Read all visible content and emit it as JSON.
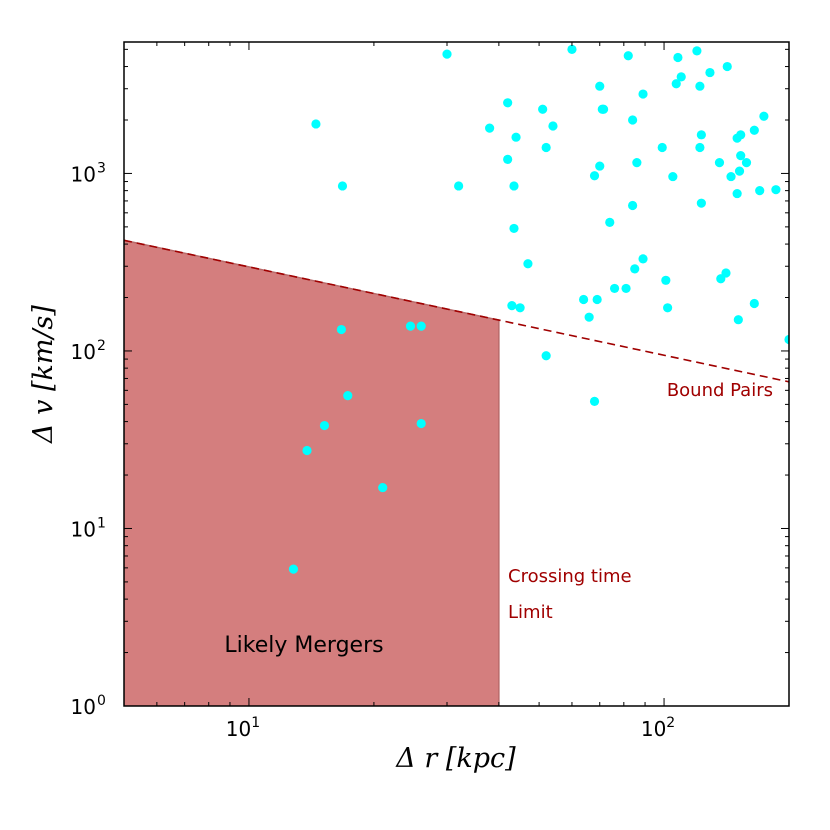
{
  "chart_data": {
    "type": "scatter",
    "x_scale": "log",
    "y_scale": "log",
    "xlim": [
      5,
      200
    ],
    "ylim": [
      1,
      5500
    ],
    "xlabel": "Δ r [kpc]",
    "ylabel": "Δ v [km/s]",
    "x_ticks": [
      {
        "value": 10,
        "base": "10",
        "exp": "1"
      },
      {
        "value": 100,
        "base": "10",
        "exp": "2"
      }
    ],
    "y_ticks": [
      {
        "value": 1,
        "base": "10",
        "exp": "0"
      },
      {
        "value": 10,
        "base": "10",
        "exp": "1"
      },
      {
        "value": 100,
        "base": "10",
        "exp": "2"
      },
      {
        "value": 1000,
        "base": "10",
        "exp": "3"
      }
    ],
    "colors": {
      "points": "#00ffff",
      "merger_region": "#d47e7e",
      "merger_edge": "#b86b6b",
      "bound_line": "#a00000",
      "annotation": "#a00000"
    },
    "bound_pairs_line": [
      {
        "x": 5,
        "y": 420
      },
      {
        "x": 200,
        "y": 67
      }
    ],
    "crossing_time_limit_x": 40,
    "merger_region": {
      "x_max": 40,
      "description_label": "Likely Mergers"
    },
    "annotations": {
      "bound_pairs": "Bound Pairs",
      "crossing_line1": "Crossing time",
      "crossing_line2": "Limit",
      "mergers": "Likely Mergers"
    },
    "points": [
      {
        "x": 14.5,
        "y": 1900
      },
      {
        "x": 16.8,
        "y": 850
      },
      {
        "x": 30,
        "y": 4700
      },
      {
        "x": 32,
        "y": 850
      },
      {
        "x": 38,
        "y": 1800
      },
      {
        "x": 42,
        "y": 2500
      },
      {
        "x": 42,
        "y": 1200
      },
      {
        "x": 43.5,
        "y": 850
      },
      {
        "x": 44,
        "y": 1600
      },
      {
        "x": 43.5,
        "y": 490
      },
      {
        "x": 47,
        "y": 310
      },
      {
        "x": 51,
        "y": 2300
      },
      {
        "x": 52,
        "y": 1400
      },
      {
        "x": 54,
        "y": 1850
      },
      {
        "x": 60,
        "y": 5000
      },
      {
        "x": 70,
        "y": 3100
      },
      {
        "x": 71,
        "y": 2300
      },
      {
        "x": 71.5,
        "y": 2300
      },
      {
        "x": 70,
        "y": 1100
      },
      {
        "x": 68,
        "y": 970
      },
      {
        "x": 82,
        "y": 4600
      },
      {
        "x": 84,
        "y": 2000
      },
      {
        "x": 84,
        "y": 660
      },
      {
        "x": 86,
        "y": 1150
      },
      {
        "x": 89,
        "y": 2800
      },
      {
        "x": 74,
        "y": 530
      },
      {
        "x": 89,
        "y": 330
      },
      {
        "x": 85,
        "y": 290
      },
      {
        "x": 81,
        "y": 225
      },
      {
        "x": 76,
        "y": 225
      },
      {
        "x": 64,
        "y": 195
      },
      {
        "x": 69,
        "y": 195
      },
      {
        "x": 66,
        "y": 155
      },
      {
        "x": 43,
        "y": 180
      },
      {
        "x": 45,
        "y": 175
      },
      {
        "x": 52,
        "y": 94
      },
      {
        "x": 68,
        "y": 52
      },
      {
        "x": 99,
        "y": 1400
      },
      {
        "x": 105,
        "y": 960
      },
      {
        "x": 108,
        "y": 4500
      },
      {
        "x": 110,
        "y": 3500
      },
      {
        "x": 107,
        "y": 3200
      },
      {
        "x": 120,
        "y": 4900
      },
      {
        "x": 122,
        "y": 3100
      },
      {
        "x": 129,
        "y": 3700
      },
      {
        "x": 123,
        "y": 1650
      },
      {
        "x": 122,
        "y": 1400
      },
      {
        "x": 123,
        "y": 680
      },
      {
        "x": 101,
        "y": 250
      },
      {
        "x": 102,
        "y": 175
      },
      {
        "x": 136,
        "y": 1150
      },
      {
        "x": 142,
        "y": 4000
      },
      {
        "x": 145,
        "y": 960
      },
      {
        "x": 150,
        "y": 770
      },
      {
        "x": 150,
        "y": 1580
      },
      {
        "x": 153,
        "y": 1650
      },
      {
        "x": 153,
        "y": 1260
      },
      {
        "x": 158,
        "y": 1150
      },
      {
        "x": 152,
        "y": 1030
      },
      {
        "x": 165,
        "y": 1750
      },
      {
        "x": 174,
        "y": 2100
      },
      {
        "x": 170,
        "y": 800
      },
      {
        "x": 186,
        "y": 810
      },
      {
        "x": 141,
        "y": 275
      },
      {
        "x": 137,
        "y": 255
      },
      {
        "x": 165,
        "y": 185
      },
      {
        "x": 151,
        "y": 150
      },
      {
        "x": 200,
        "y": 116
      },
      {
        "x": 16.7,
        "y": 132
      },
      {
        "x": 24.5,
        "y": 138
      },
      {
        "x": 26,
        "y": 138
      },
      {
        "x": 17.3,
        "y": 56
      },
      {
        "x": 15.2,
        "y": 38
      },
      {
        "x": 26,
        "y": 39
      },
      {
        "x": 13.8,
        "y": 27.5
      },
      {
        "x": 21,
        "y": 17
      },
      {
        "x": 12.8,
        "y": 5.9
      }
    ]
  }
}
